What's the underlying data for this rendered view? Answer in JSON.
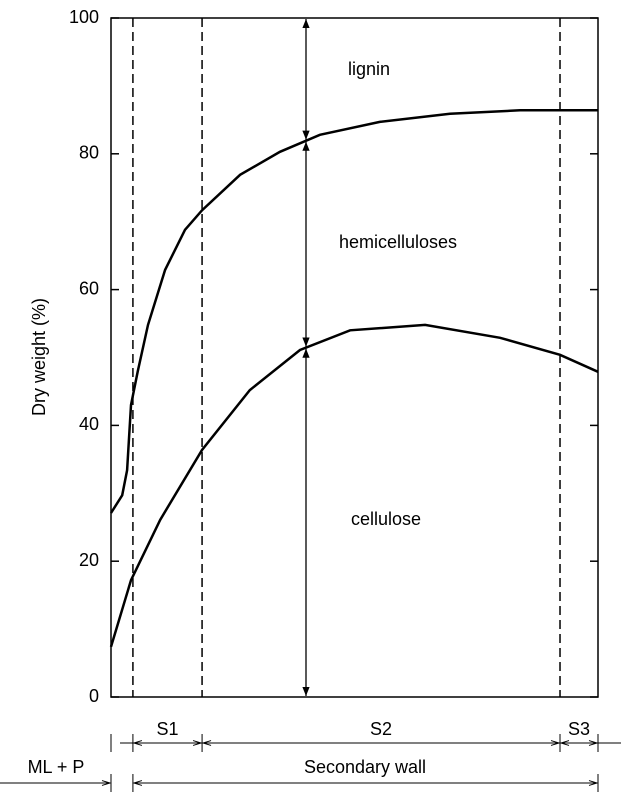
{
  "chart_data": {
    "type": "line",
    "ylabel": "Dry weight (%)",
    "ylim": [
      0,
      100
    ],
    "yticks": [
      0,
      20,
      40,
      60,
      80,
      100
    ],
    "xlim": [
      0,
      100
    ],
    "series": [
      {
        "name": "hemicelluloses",
        "color": "#000000",
        "x": [
          0,
          2.3,
          3.3,
          4.1,
          5.5,
          7.6,
          11.1,
          15.2,
          18.7,
          26.5,
          34.7,
          42.9,
          55.2,
          69.6,
          84.0,
          100
        ],
        "values": [
          27.1,
          29.7,
          33.4,
          43,
          48,
          54.8,
          62.9,
          68.8,
          71.7,
          76.9,
          80.3,
          82.8,
          84.7,
          85.9,
          86.4,
          86.4
        ]
      },
      {
        "name": "cellulose",
        "color": "#000000",
        "x": [
          0,
          4.1,
          10.1,
          18.7,
          28.5,
          38.8,
          49.1,
          64.5,
          79.9,
          92.2,
          100
        ],
        "values": [
          7.4,
          17.2,
          26.1,
          36.4,
          45.2,
          51.1,
          54.0,
          54.8,
          52.9,
          50.4,
          47.9
        ]
      }
    ],
    "top_label": "lignin",
    "boundaries": [
      4.5,
      18.7,
      92.2
    ],
    "regions": [
      "S1",
      "S2",
      "S3"
    ],
    "zones": [
      "ML + P",
      "Secondary wall"
    ]
  }
}
